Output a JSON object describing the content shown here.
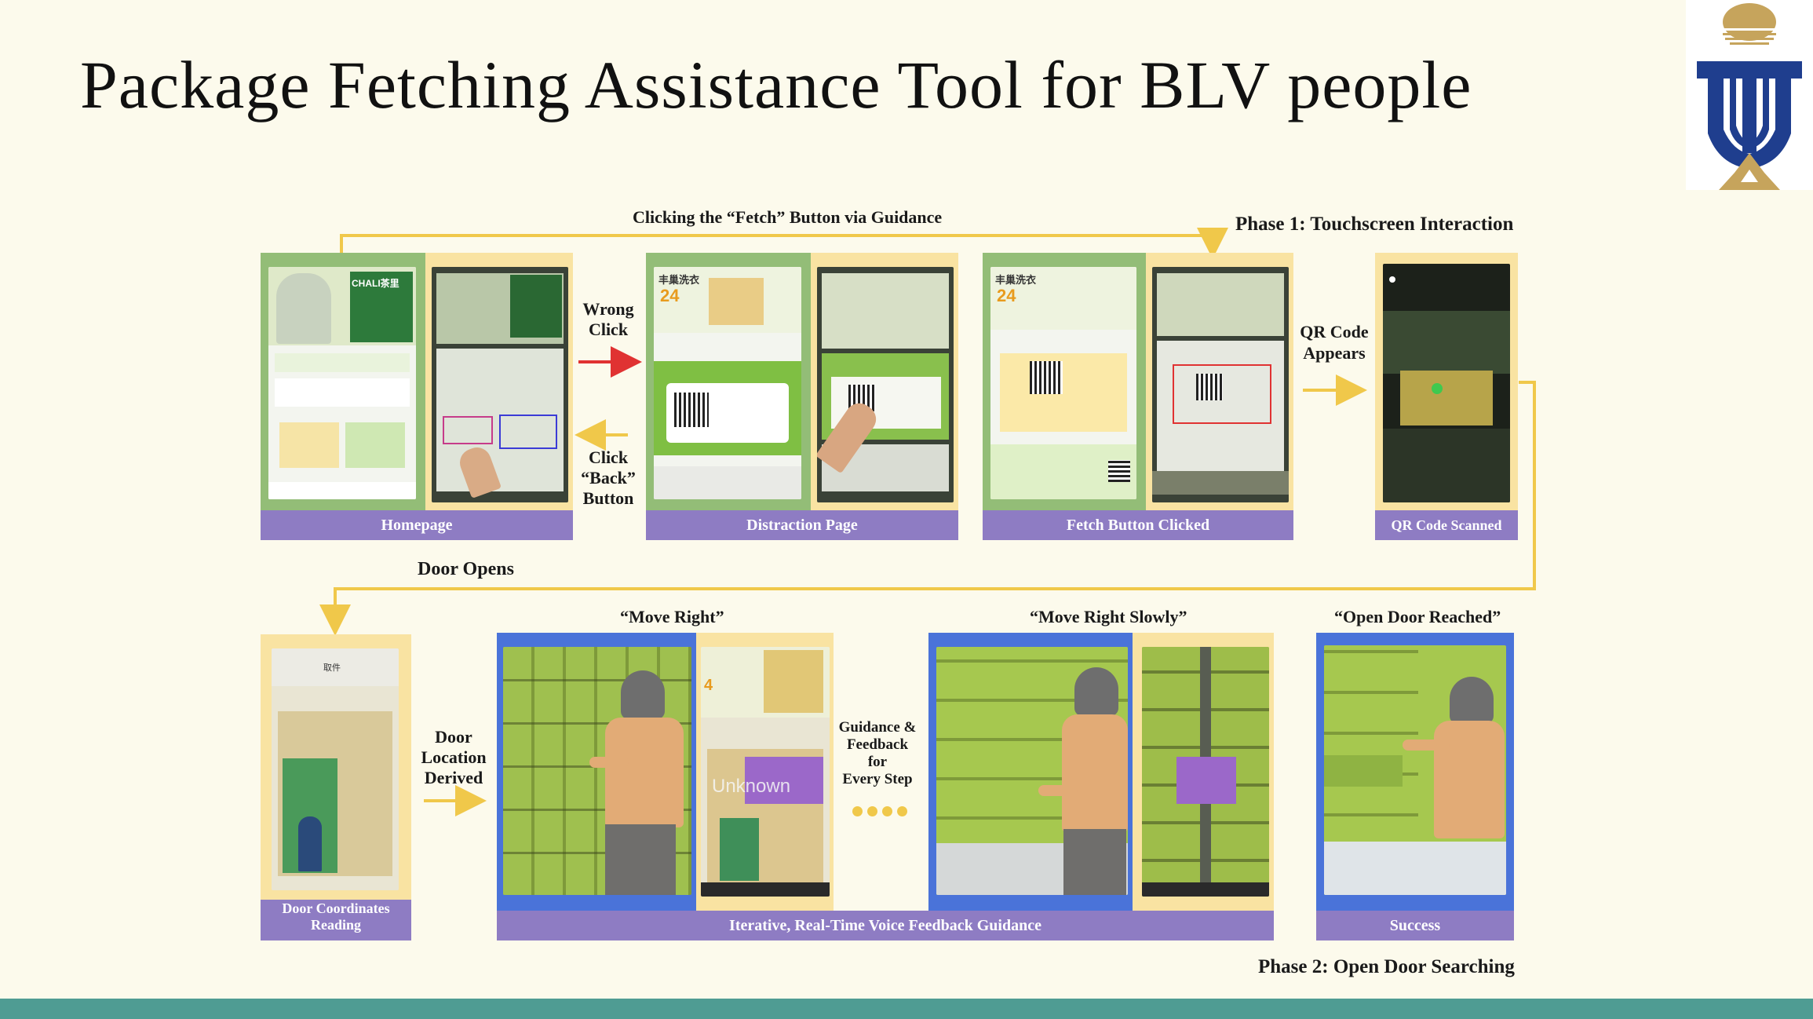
{
  "title": "Package Fetching Assistance Tool for BLV people",
  "phase1": "Phase 1: Touchscreen Interaction",
  "phase2": "Phase 2: Open Door Searching",
  "top_flow_label": "Clicking the “Fetch” Button via Guidance",
  "wrong_click": [
    "Wrong",
    "Click"
  ],
  "back_button": [
    "Click",
    "“Back”",
    "Button"
  ],
  "qr_appears": [
    "QR Code",
    "Appears"
  ],
  "door_opens": "Door Opens",
  "door_location": [
    "Door",
    "Location",
    "Derived"
  ],
  "guidance_feedback": [
    "Guidance &",
    "Feedback",
    "for",
    "Every Step"
  ],
  "quote_move_right": "“Move Right”",
  "quote_move_right_slowly": "“Move Right Slowly”",
  "quote_open_door": "“Open Door Reached”",
  "captions": {
    "homepage": "Homepage",
    "distraction": "Distraction Page",
    "fetch_clicked": "Fetch Button Clicked",
    "qr_scanned": "QR Code Scanned",
    "door_coords": [
      "Door Coordinates",
      "Reading"
    ],
    "iterative": "Iterative, Real-Time Voice Feedback Guidance",
    "success": "Success"
  },
  "screen_text": {
    "chali": "CHALI茶里",
    "fengchao": "丰巢洗衣",
    "pct": "24",
    "unknown": "Unknown",
    "qujian": "取件"
  },
  "colors": {
    "arrow_red": "#e03232",
    "arrow_yellow": "#f0c84a",
    "caption_purple": "#8e7cc3",
    "frame_green": "#93bd77",
    "frame_yellow": "#f9e3a2",
    "frame_blue": "#4a73d9",
    "bottom_bar": "#4f9c93"
  },
  "icons": {
    "logo": "hkust-logo"
  }
}
